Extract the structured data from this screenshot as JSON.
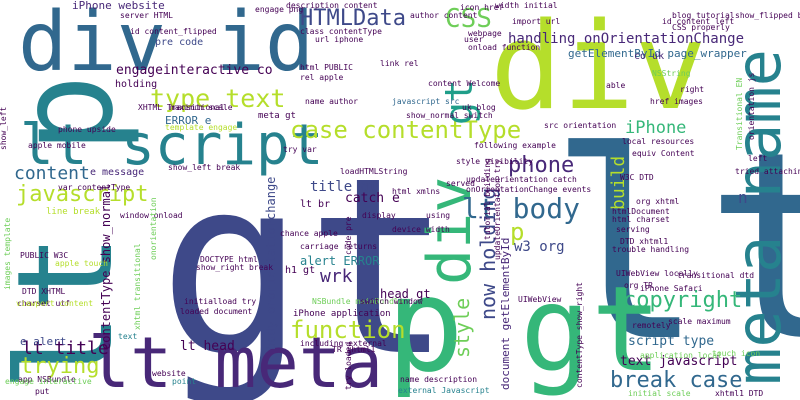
{
  "colors": {
    "background": "#ffffff",
    "palette": [
      "#440154",
      "#482878",
      "#3e4989",
      "#31688e",
      "#26828e",
      "#1f9e89",
      "#35b779",
      "#6ece58",
      "#b5de2b",
      "#fde725"
    ]
  },
  "words": [
    {
      "text": "gt"
    },
    {
      "text": "lt"
    },
    {
      "text": "div"
    },
    {
      "text": "lt p"
    },
    {
      "text": "div id"
    },
    {
      "text": "lt meta"
    },
    {
      "text": "gt"
    },
    {
      "text": "p"
    },
    {
      "text": "meta name"
    },
    {
      "text": "lt script"
    },
    {
      "text": "HTMLData"
    },
    {
      "text": "CSS"
    },
    {
      "text": "case contentType"
    },
    {
      "text": "type text"
    },
    {
      "text": "div"
    },
    {
      "text": "gt"
    },
    {
      "text": "lt body"
    },
    {
      "text": "javascript"
    },
    {
      "text": "content"
    },
    {
      "text": "function"
    },
    {
      "text": "trying"
    },
    {
      "text": "copyright"
    },
    {
      "text": "break case"
    },
    {
      "text": "iPhone"
    },
    {
      "text": "phone"
    },
    {
      "text": "lt title"
    },
    {
      "text": "wrk"
    },
    {
      "text": "style"
    },
    {
      "text": "now holding"
    },
    {
      "text": "p"
    },
    {
      "text": "build"
    },
    {
      "text": "engageinteractive co"
    },
    {
      "text": "handling onOrientationChange"
    },
    {
      "text": "getElementById page_wrapper"
    },
    {
      "text": "iPhone website"
    },
    {
      "text": "lt head"
    },
    {
      "text": "head gt"
    },
    {
      "text": "title gt"
    },
    {
      "text": "alert ERROR"
    },
    {
      "text": "w3 org"
    },
    {
      "text": "script type"
    },
    {
      "text": "text javascript"
    },
    {
      "text": "ERROR e"
    },
    {
      "text": "e message"
    },
    {
      "text": "e alert"
    },
    {
      "text": "pre code"
    },
    {
      "text": "co uk"
    },
    {
      "text": "body onorientationchange"
    },
    {
      "text": "document getElementById"
    },
    {
      "text": "contentType show_normal"
    },
    {
      "text": "n"
    },
    {
      "text": "catch e"
    },
    {
      "text": "h1 gt"
    },
    {
      "text": "holding"
    },
    {
      "text": "iPhone application"
    },
    {
      "text": "line break"
    },
    {
      "text": "lt br"
    },
    {
      "text": "meta gt"
    },
    {
      "text": "description content"
    },
    {
      "text": "content Welcome"
    },
    {
      "text": "show_normal switch"
    },
    {
      "text": "javascript src"
    },
    {
      "text": "author content"
    },
    {
      "text": "url iphone"
    },
    {
      "text": "rel apple"
    },
    {
      "text": "name author"
    },
    {
      "text": "tried attaching"
    },
    {
      "text": "DOCTYPE html"
    },
    {
      "text": "show_right break"
    },
    {
      "text": "apple touch"
    },
    {
      "text": "PUBLIC W3C"
    },
    {
      "text": "var contentType"
    },
    {
      "text": "text"
    },
    {
      "text": "website"
    },
    {
      "text": "point"
    },
    {
      "text": "app NSBundle"
    },
    {
      "text": "charset utf"
    },
    {
      "text": "put"
    },
    {
      "text": "engage interactive"
    },
    {
      "text": "scale maximum"
    },
    {
      "text": "remotely"
    },
    {
      "text": "touch icon"
    },
    {
      "text": "application local"
    },
    {
      "text": "including external"
    },
    {
      "text": "external Javascript"
    },
    {
      "text": "name description"
    },
    {
      "text": "NSBundle mainBundle"
    },
    {
      "text": "switch window"
    },
    {
      "text": "UIWebView locally"
    },
    {
      "text": "DTD xhtml1"
    },
    {
      "text": "org TR"
    },
    {
      "text": "transitional dtd"
    },
    {
      "text": "serving"
    },
    {
      "text": "htmlDocument"
    },
    {
      "text": "html charset"
    },
    {
      "text": "local resources"
    },
    {
      "text": "equiv Content"
    },
    {
      "text": "W3C DTD"
    },
    {
      "text": "org xhtml"
    },
    {
      "text": "uk blog"
    },
    {
      "text": "following example"
    },
    {
      "text": "loadHTMLString"
    },
    {
      "text": "html xmlns"
    },
    {
      "text": "device width"
    },
    {
      "text": "display"
    },
    {
      "text": "code pre"
    },
    {
      "text": "served"
    },
    {
      "text": "using"
    },
    {
      "text": "tutorial building"
    },
    {
      "text": "updateOrientation try"
    },
    {
      "text": "width initial"
    },
    {
      "text": "icon href"
    },
    {
      "text": "import url"
    },
    {
      "text": "webpage"
    },
    {
      "text": "user"
    },
    {
      "text": "onload function"
    },
    {
      "text": "engage png"
    },
    {
      "text": "server HTML"
    },
    {
      "text": "XHTML Transitional"
    },
    {
      "text": "maximum scale"
    },
    {
      "text": "phone upside"
    },
    {
      "text": "template engage"
    },
    {
      "text": "html PUBLIC"
    },
    {
      "text": "link rel"
    },
    {
      "text": "href images"
    },
    {
      "text": "able"
    },
    {
      "text": "right"
    },
    {
      "text": "left"
    },
    {
      "text": "NSString"
    },
    {
      "text": "blog tutorial"
    },
    {
      "text": "show_flipped break"
    },
    {
      "text": "CSS properly"
    },
    {
      "text": "id content_left"
    },
    {
      "text": "id content_flipped"
    },
    {
      "text": "class contentType"
    },
    {
      "text": "window onload"
    },
    {
      "text": "trouble handling"
    },
    {
      "text": "UIWebView"
    },
    {
      "text": "iPhone Safari"
    },
    {
      "text": "initial scale"
    },
    {
      "text": "xhtml1 DTD"
    },
    {
      "text": "loaded document"
    },
    {
      "text": "initialload try"
    },
    {
      "text": "carriage returns"
    },
    {
      "text": "style visibility"
    },
    {
      "text": "updateOrientation catch"
    },
    {
      "text": "onOrientationChange events"
    },
    {
      "text": "contentType show_right"
    },
    {
      "text": "try var"
    },
    {
      "text": "chance apple"
    },
    {
      "text": "TR xhtml1"
    },
    {
      "text": "try loaded"
    },
    {
      "text": "orientation js"
    },
    {
      "text": "Transitional EN"
    },
    {
      "text": "show_left"
    },
    {
      "text": "show_left break"
    },
    {
      "text": "images template"
    },
    {
      "text": "viewport content"
    },
    {
      "text": "DTD XHTML"
    },
    {
      "text": "apple mobile"
    },
    {
      "text": "onorientation"
    },
    {
      "text": "xhtml transitional"
    },
    {
      "text": "src orientation"
    }
  ]
}
